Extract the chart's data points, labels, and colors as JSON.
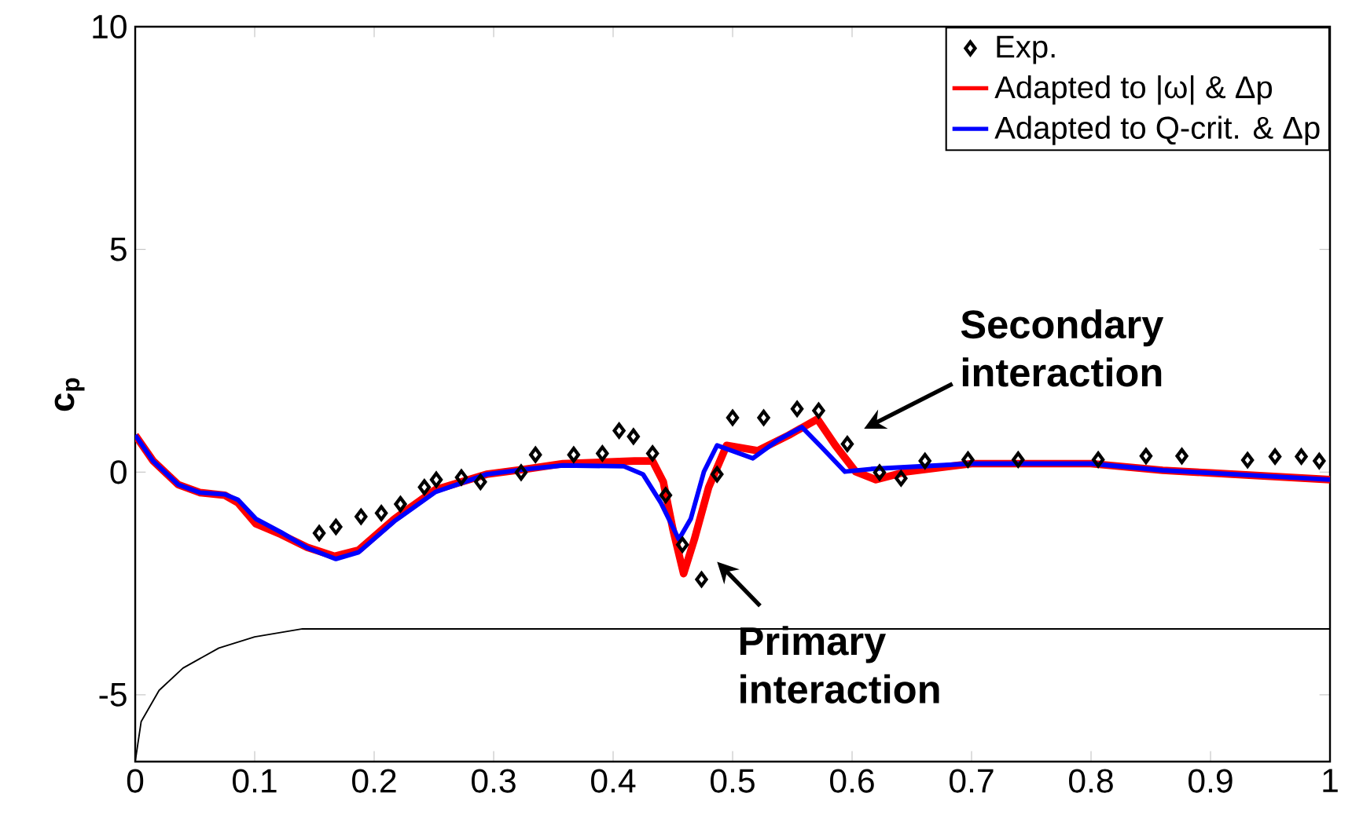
{
  "chart_data": {
    "type": "line",
    "ylabel": "c$_{p}$",
    "xlim": [
      0,
      1
    ],
    "ylim": [
      -6.5,
      10
    ],
    "xticks": [
      0,
      0.1,
      0.2,
      0.3,
      0.4,
      0.5,
      0.6,
      0.7,
      0.8,
      0.9,
      1
    ],
    "yticks": [
      -5,
      0,
      5,
      10
    ],
    "grid": false,
    "legend": "top right",
    "annotations": [
      "Secondary interaction",
      "Primary interaction"
    ],
    "series": [
      {
        "name": "Exp.",
        "type": "scatter",
        "marker": "diamond",
        "color": "#000000",
        "x": [
          0.154,
          0.168,
          0.189,
          0.206,
          0.222,
          0.242,
          0.252,
          0.273,
          0.289,
          0.323,
          0.335,
          0.367,
          0.391,
          0.405,
          0.417,
          0.433,
          0.444,
          0.458,
          0.474,
          0.487,
          0.5,
          0.526,
          0.554,
          0.572,
          0.596,
          0.623,
          0.641,
          0.661,
          0.697,
          0.739,
          0.806,
          0.846,
          0.876,
          0.931,
          0.954,
          0.976,
          0.991
        ],
        "values": [
          -1.37,
          -1.23,
          -1.0,
          -0.92,
          -0.72,
          -0.34,
          -0.17,
          -0.12,
          -0.22,
          -0.01,
          0.39,
          0.39,
          0.42,
          0.93,
          0.8,
          0.42,
          -0.52,
          -1.63,
          -2.41,
          -0.05,
          1.22,
          1.22,
          1.42,
          1.38,
          0.63,
          -0.01,
          -0.14,
          0.25,
          0.28,
          0.28,
          0.28,
          0.36,
          0.36,
          0.27,
          0.35,
          0.35,
          0.25
        ]
      },
      {
        "name": "Adapted to |ω| & Δp",
        "line_style": "solid",
        "color": "#ff0000",
        "x": [
          0,
          0.015,
          0.036,
          0.054,
          0.075,
          0.086,
          0.101,
          0.122,
          0.144,
          0.167,
          0.187,
          0.217,
          0.251,
          0.294,
          0.328,
          0.358,
          0.418,
          0.433,
          0.442,
          0.45,
          0.459,
          0.468,
          0.48,
          0.495,
          0.521,
          0.547,
          0.571,
          0.586,
          0.603,
          0.62,
          0.646,
          0.7,
          0.8,
          0.86,
          0.9,
          1
        ],
        "values": [
          0.83,
          0.25,
          -0.28,
          -0.46,
          -0.52,
          -0.69,
          -1.16,
          -1.4,
          -1.69,
          -1.89,
          -1.75,
          -1.05,
          -0.4,
          -0.05,
          0.07,
          0.19,
          0.25,
          0.25,
          -0.22,
          -1.28,
          -2.28,
          -1.51,
          -0.34,
          0.6,
          0.48,
          0.83,
          1.19,
          0.6,
          0.01,
          -0.17,
          0.01,
          0.19,
          0.19,
          0.04,
          -0.02,
          -0.17
        ]
      },
      {
        "name": "Adapted to Q-crit. & Δp",
        "line_style": "solid",
        "color": "#0000ff",
        "x": [
          0,
          0.015,
          0.036,
          0.054,
          0.075,
          0.086,
          0.101,
          0.122,
          0.144,
          0.168,
          0.187,
          0.217,
          0.251,
          0.294,
          0.328,
          0.358,
          0.409,
          0.425,
          0.44,
          0.455,
          0.465,
          0.476,
          0.487,
          0.517,
          0.538,
          0.558,
          0.573,
          0.594,
          0.616,
          0.7,
          0.8,
          0.86,
          0.9,
          1
        ],
        "values": [
          0.83,
          0.25,
          -0.28,
          -0.46,
          -0.5,
          -0.62,
          -1.05,
          -1.35,
          -1.7,
          -1.95,
          -1.8,
          -1.1,
          -0.45,
          -0.05,
          0.07,
          0.15,
          0.13,
          -0.05,
          -0.69,
          -1.51,
          -1.05,
          0.01,
          0.6,
          0.31,
          0.72,
          1.01,
          0.6,
          0.01,
          0.07,
          0.19,
          0.19,
          0.04,
          -0.02,
          -0.17
        ]
      },
      {
        "line_style": "solid",
        "color": "#000000",
        "x": [
          0,
          0.005,
          0.02,
          0.04,
          0.07,
          0.1,
          0.14,
          1
        ],
        "values": [
          -6.5,
          -5.6,
          -4.9,
          -4.4,
          -3.95,
          -3.7,
          -3.52,
          -3.52
        ]
      }
    ]
  }
}
